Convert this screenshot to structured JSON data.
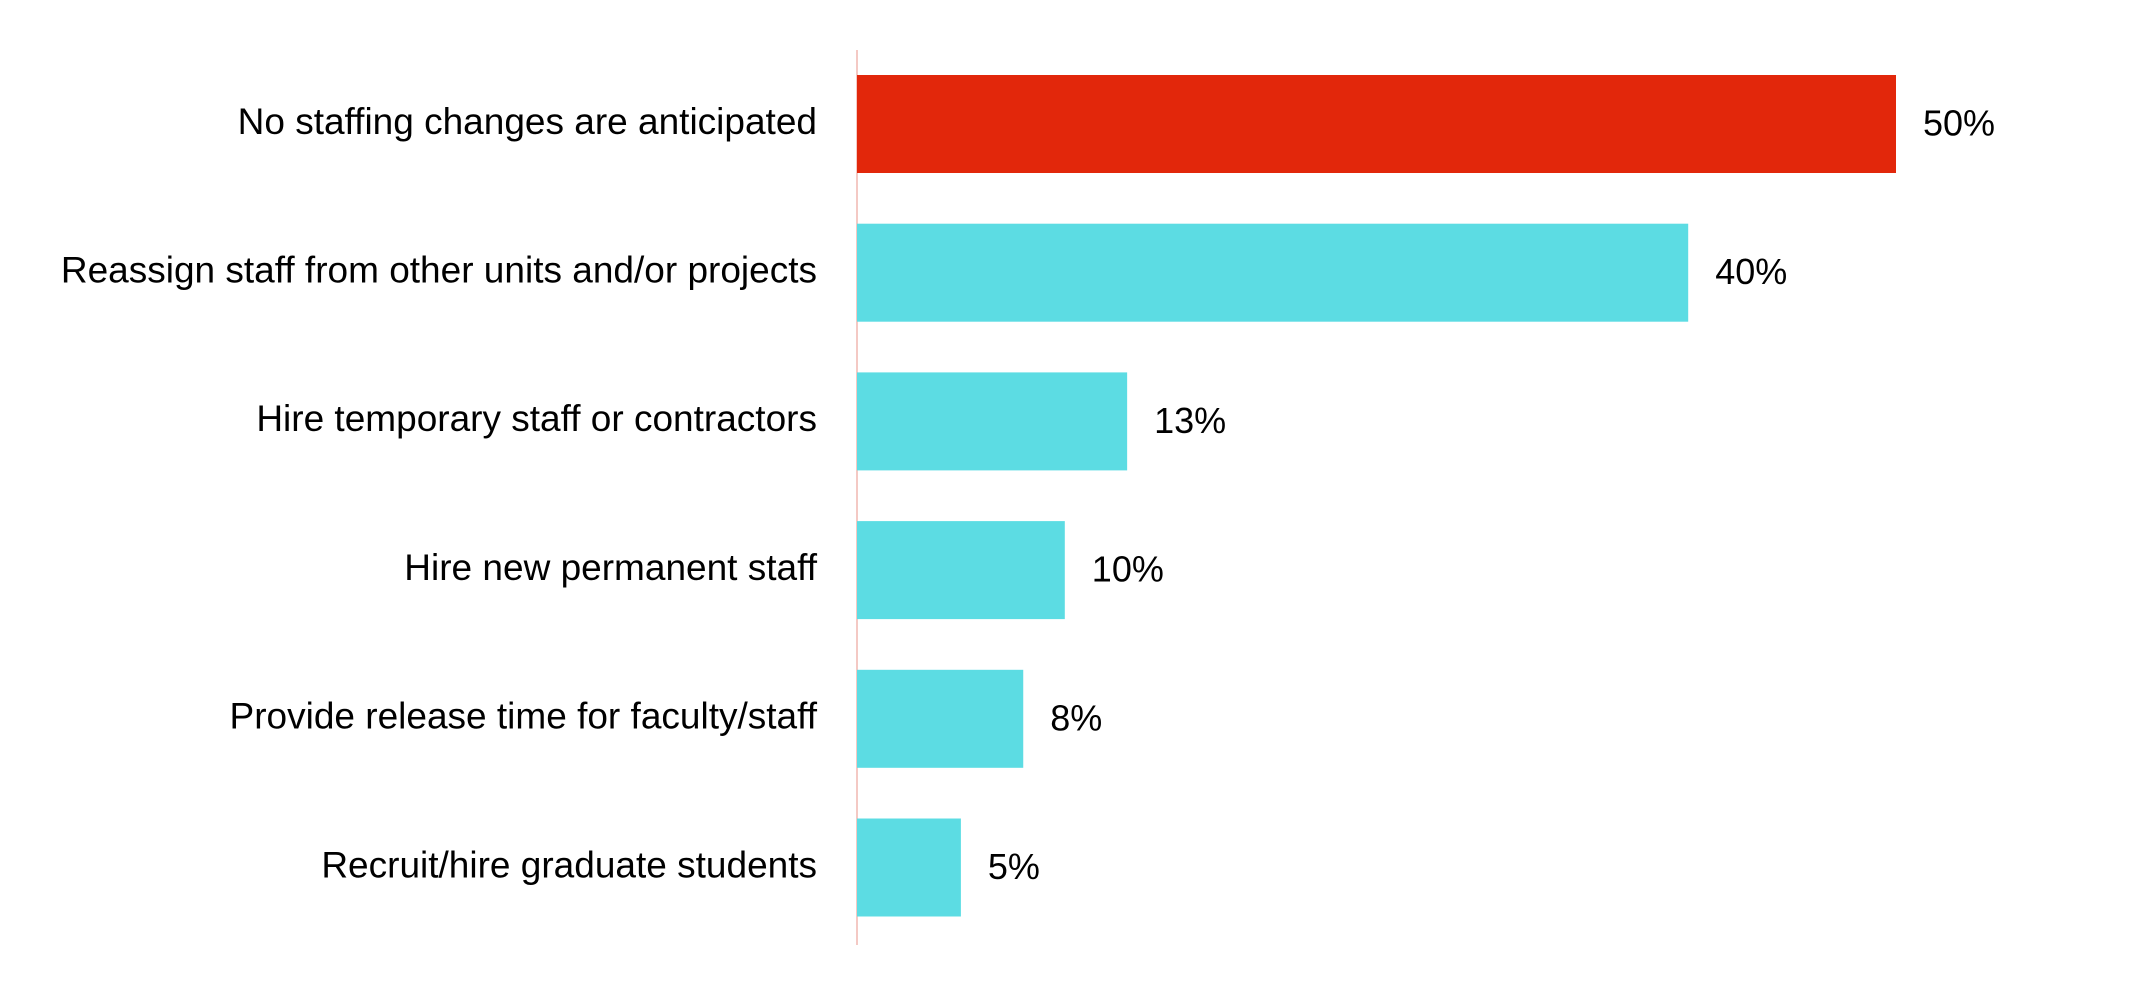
{
  "chart_data": {
    "type": "bar",
    "orientation": "horizontal",
    "categories": [
      "No staffing changes are anticipated",
      "Reassign staff from other units and/or projects",
      "Hire temporary staff or contractors",
      "Hire new permanent staff",
      "Provide release time for faculty/staff",
      "Recruit/hire graduate students"
    ],
    "values": [
      50,
      40,
      13,
      10,
      8,
      5
    ],
    "value_labels": [
      "50%",
      "40%",
      "13%",
      "10%",
      "8%",
      "5%"
    ],
    "unit": "%",
    "xlim": [
      0,
      50
    ],
    "grid": false,
    "legend": "none",
    "colors": {
      "highlight": "#E2270B",
      "default": "#5CDCE3",
      "axis_line": "#F4C9C4"
    },
    "highlight_index": 0
  }
}
